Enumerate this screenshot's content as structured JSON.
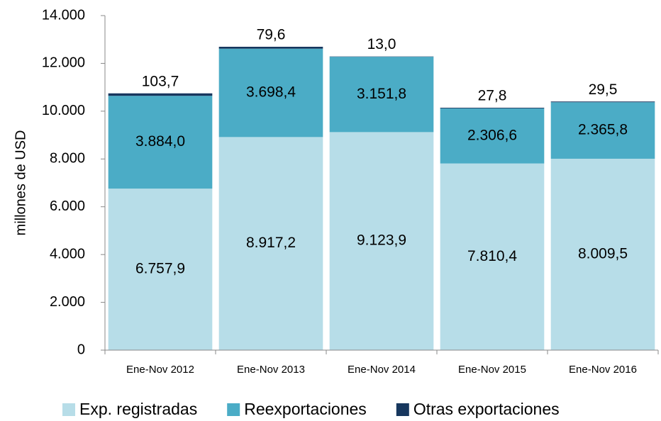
{
  "chart_data": {
    "type": "stacked_bar",
    "y_label": "millones de  USD",
    "categories": [
      "Ene-Nov 2012",
      "Ene-Nov 2013",
      "Ene-Nov 2014",
      "Ene-Nov 2015",
      "Ene-Nov 2016"
    ],
    "series": [
      {
        "name": "Exp. registradas",
        "color": "#b7dde8",
        "values": [
          6757.9,
          8917.2,
          9123.9,
          7810.4,
          8009.5
        ],
        "value_labels": [
          "6.757,9",
          "8.917,2",
          "9.123,9",
          "7.810,4",
          "8.009,5"
        ]
      },
      {
        "name": "Reexportaciones",
        "color": "#4bacc6",
        "values": [
          3884.0,
          3698.4,
          3151.8,
          2306.6,
          2365.8
        ],
        "value_labels": [
          "3.884,0",
          "3.698,4",
          "3.151,8",
          "2.306,6",
          "2.365,8"
        ]
      },
      {
        "name": "Otras exportaciones",
        "color": "#17375e",
        "values": [
          103.7,
          79.6,
          13.0,
          27.8,
          29.5
        ],
        "value_labels": [
          "103,7",
          "79,6",
          "13,0",
          "27,8",
          "29,5"
        ]
      }
    ],
    "ylim": [
      0,
      14000
    ],
    "yticks": [
      0,
      {
        "value": 2000,
        "label": "2.000"
      },
      {
        "value": 4000,
        "label": "4.000"
      },
      {
        "value": 6000,
        "label": "6.000"
      },
      {
        "value": 8000,
        "label": "8.000"
      },
      {
        "value": 10000,
        "label": "10.000"
      },
      {
        "value": 12000,
        "label": "12.000"
      },
      {
        "value": 14000,
        "label": "14.000"
      }
    ],
    "legend": "bottom"
  }
}
